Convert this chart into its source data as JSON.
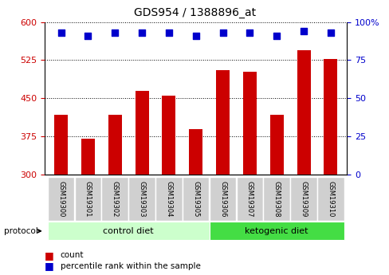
{
  "title": "GDS954 / 1388896_at",
  "samples": [
    "GSM19300",
    "GSM19301",
    "GSM19302",
    "GSM19303",
    "GSM19304",
    "GSM19305",
    "GSM19306",
    "GSM19307",
    "GSM19308",
    "GSM19309",
    "GSM19310"
  ],
  "counts": [
    418,
    370,
    418,
    465,
    455,
    390,
    505,
    503,
    418,
    545,
    528
  ],
  "percentile_ranks": [
    93,
    91,
    93,
    93,
    93,
    91,
    93,
    93,
    91,
    94,
    93
  ],
  "ylim_left": [
    300,
    600
  ],
  "ylim_right": [
    0,
    100
  ],
  "yticks_left": [
    300,
    375,
    450,
    525,
    600
  ],
  "yticks_right": [
    0,
    25,
    50,
    75,
    100
  ],
  "bar_color": "#cc0000",
  "dot_color": "#0000cc",
  "protocol_label": "protocol",
  "groups": [
    {
      "label": "control diet",
      "indices": [
        0,
        1,
        2,
        3,
        4,
        5
      ],
      "color": "#ccffcc"
    },
    {
      "label": "ketogenic diet",
      "indices": [
        6,
        7,
        8,
        9,
        10
      ],
      "color": "#44dd44"
    }
  ],
  "legend": [
    {
      "label": "count",
      "color": "#cc0000"
    },
    {
      "label": "percentile rank within the sample",
      "color": "#0000cc"
    }
  ],
  "tick_label_color_left": "#cc0000",
  "tick_label_color_right": "#0000cc",
  "bar_width": 0.5,
  "dot_size": 30,
  "tick_gray": "#c8c8c8",
  "control_diet_light": "#ccffcc",
  "ketogenic_diet_green": "#44dd44"
}
